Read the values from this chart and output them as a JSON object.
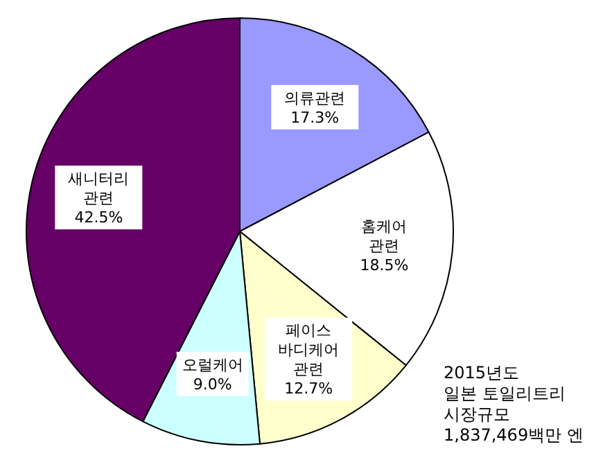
{
  "chart_data": {
    "type": "pie",
    "categories": [
      "의류관련",
      "홈케어 관련",
      "페이스 바디케어 관련",
      "오럴케어",
      "새니터리 관련"
    ],
    "values": [
      17.3,
      18.5,
      12.7,
      9.0,
      42.5
    ],
    "value_labels": [
      "17.3%",
      "18.5%",
      "12.7%",
      "9.0%",
      "42.5%"
    ],
    "colors": [
      "#9999ff",
      "#ffffff",
      "#ffffcc",
      "#ccffff",
      "#660066"
    ],
    "annotations": [
      "2015년도\n일본 토일리트리\n시장규모\n1,837,469백만 엔"
    ]
  }
}
